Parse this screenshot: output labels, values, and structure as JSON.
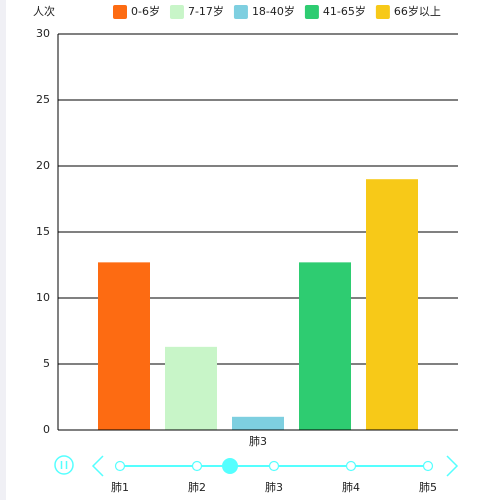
{
  "chart_data": {
    "type": "bar",
    "y_label": "人次",
    "categories": [
      "肺3"
    ],
    "series": [
      {
        "name": "0-6岁",
        "color": "#fd6b12",
        "values": [
          12.7
        ]
      },
      {
        "name": "7-17岁",
        "color": "#c8f5c8",
        "values": [
          6.3
        ]
      },
      {
        "name": "18-40岁",
        "color": "#7ecfe0",
        "values": [
          1
        ]
      },
      {
        "name": "41-65岁",
        "color": "#2ecc71",
        "values": [
          12.7
        ]
      },
      {
        "name": "66岁以上",
        "color": "#f7c918",
        "values": [
          19
        ]
      }
    ],
    "ylim": [
      0,
      30
    ],
    "yticks": [
      0,
      5,
      10,
      15,
      20,
      25,
      30
    ],
    "grid": true,
    "timeline": {
      "labels": [
        "肺1",
        "肺2",
        "肺3",
        "肺4",
        "肺5"
      ]
    }
  }
}
